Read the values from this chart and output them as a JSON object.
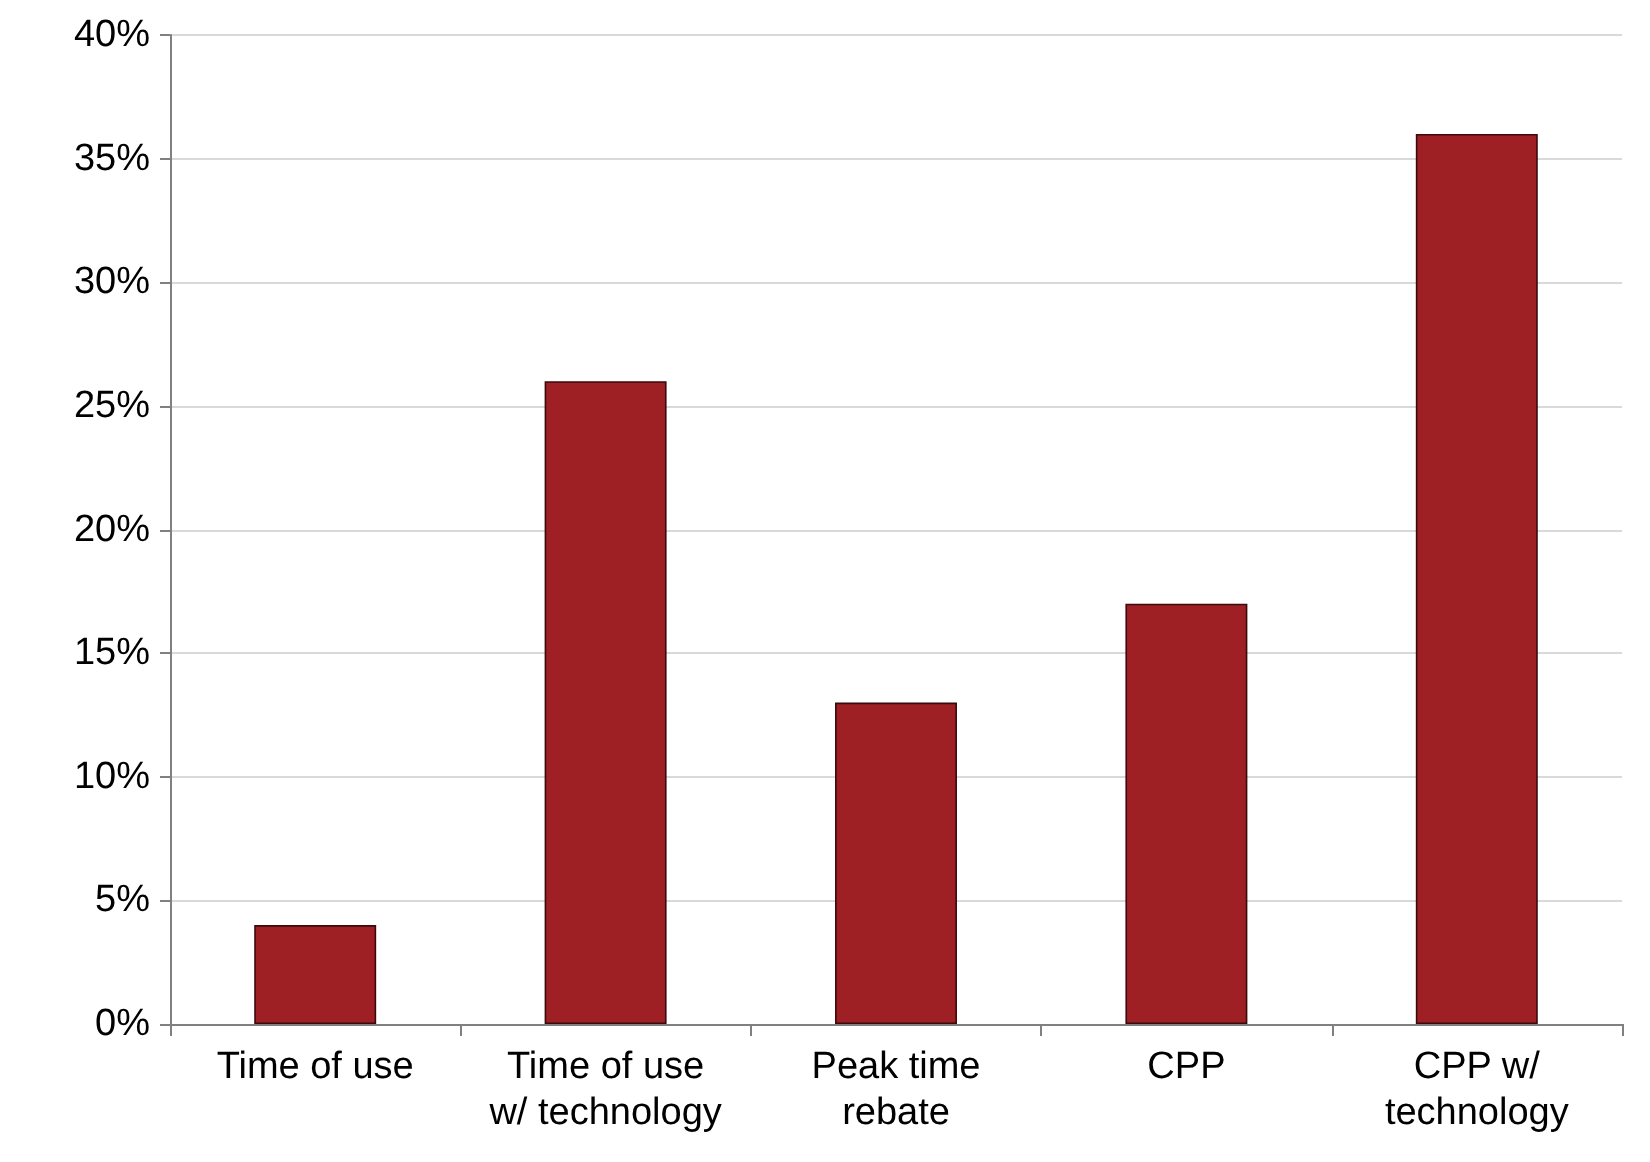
{
  "chart_data": {
    "type": "bar",
    "categories": [
      "Time of use",
      "Time of use\nw/ technology",
      "Peak time\nrebate",
      "CPP",
      "CPP w/\ntechnology"
    ],
    "values": [
      4,
      26,
      13,
      17,
      36
    ],
    "color": "#9e1f24",
    "ylim": [
      0,
      40
    ],
    "yticks": [
      {
        "value": 0,
        "label": "0%"
      },
      {
        "value": 5,
        "label": "5%"
      },
      {
        "value": 10,
        "label": "10%"
      },
      {
        "value": 15,
        "label": "15%"
      },
      {
        "value": 20,
        "label": "20%"
      },
      {
        "value": 25,
        "label": "25%"
      },
      {
        "value": 30,
        "label": "30%"
      },
      {
        "value": 35,
        "label": "35%"
      },
      {
        "value": 40,
        "label": "40%"
      }
    ],
    "grid": "y"
  }
}
